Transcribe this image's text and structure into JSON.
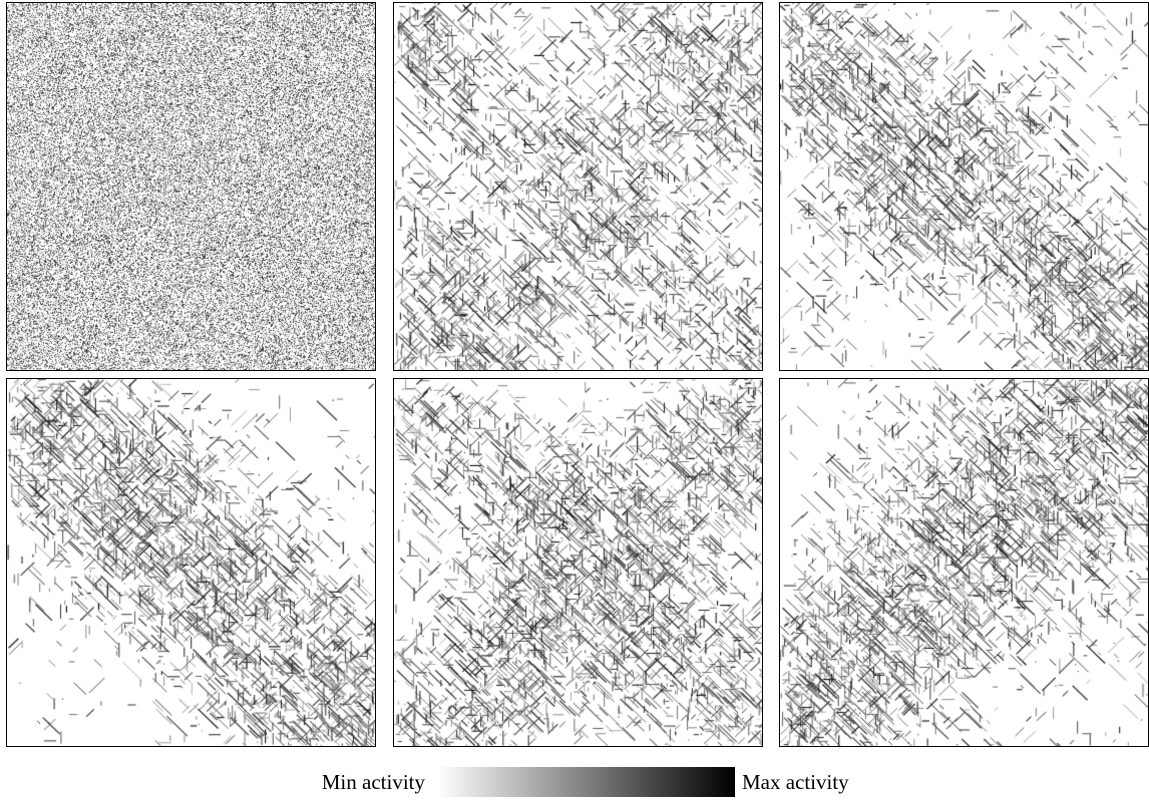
{
  "panels": [
    {
      "id": "panel-1"
    },
    {
      "id": "panel-2"
    },
    {
      "id": "panel-3"
    },
    {
      "id": "panel-4"
    },
    {
      "id": "panel-5"
    },
    {
      "id": "panel-6"
    }
  ],
  "legend": {
    "min_label": "Min activity",
    "max_label": "Max activity",
    "gradient_start_color": "#ffffff",
    "gradient_end_color": "#000000"
  },
  "colors": {
    "background": "#ffffff",
    "ink": "#000000"
  }
}
